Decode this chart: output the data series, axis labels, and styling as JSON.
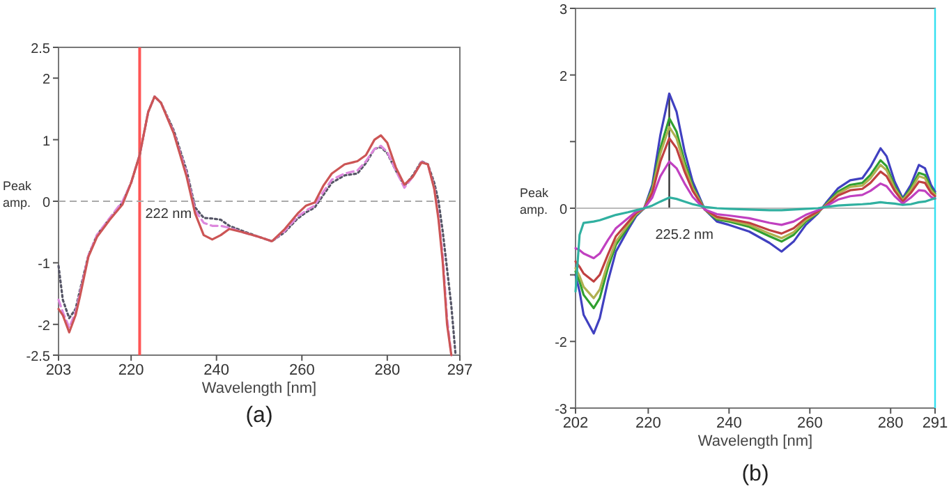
{
  "chart_data": [
    {
      "type": "line",
      "xlabel": "Wavelength [nm]",
      "ylabel": "Peak amp.",
      "annotations": [
        "(a)"
      ],
      "x": [
        203,
        204,
        205.5,
        207,
        208,
        210,
        212,
        215,
        218,
        220,
        222,
        224,
        225.5,
        227,
        230,
        233,
        235,
        237,
        239,
        241,
        243,
        246,
        250,
        253,
        256,
        259,
        261,
        263,
        265,
        267,
        270,
        273,
        275,
        277,
        278.5,
        280,
        282,
        284,
        286,
        288,
        289.5,
        291,
        292,
        293,
        294,
        295,
        296
      ],
      "xlim": [
        203,
        297
      ],
      "xticks": [
        203,
        220,
        240,
        260,
        280,
        297
      ],
      "ylim": [
        -2.5,
        2.5
      ],
      "yticks": [
        -2.5,
        -2,
        -1,
        0,
        1,
        2,
        2.5
      ],
      "ref_lines": [
        {
          "axis": "x",
          "value": 222,
          "label": "222 nm",
          "color": "#ff5555",
          "line_style": "solid"
        },
        {
          "axis": "y",
          "value": 0,
          "label": null,
          "color": "#aaaaaa",
          "line_style": "dashed"
        }
      ],
      "series": [
        {
          "color": "#555566",
          "line_style": "dotted",
          "values": [
            -1.05,
            -1.6,
            -1.9,
            -1.75,
            -1.45,
            -0.88,
            -0.55,
            -0.28,
            -0.02,
            0.3,
            0.75,
            1.45,
            1.7,
            1.6,
            1.15,
            0.5,
            -0.1,
            -0.27,
            -0.28,
            -0.3,
            -0.4,
            -0.48,
            -0.58,
            -0.65,
            -0.5,
            -0.28,
            -0.18,
            -0.1,
            0.1,
            0.3,
            0.42,
            0.45,
            0.62,
            0.85,
            0.88,
            0.78,
            0.5,
            0.25,
            0.42,
            0.65,
            0.6,
            0.3,
            0,
            -0.5,
            -1.1,
            -1.7,
            -2.5
          ]
        },
        {
          "color": "#dd88dd",
          "line_style": "dashed",
          "values": [
            -1.6,
            -1.8,
            -2.05,
            -1.8,
            -1.5,
            -0.88,
            -0.55,
            -0.27,
            0,
            0.3,
            0.75,
            1.45,
            1.7,
            1.6,
            1.12,
            0.45,
            -0.15,
            -0.35,
            -0.4,
            -0.4,
            -0.43,
            -0.5,
            -0.58,
            -0.65,
            -0.48,
            -0.25,
            -0.15,
            -0.07,
            0.15,
            0.35,
            0.45,
            0.5,
            0.65,
            0.85,
            0.9,
            0.8,
            0.5,
            0.22,
            0.4,
            0.64,
            0.6,
            0.22,
            -0.25,
            -0.9,
            -1.9,
            -2.5,
            null
          ]
        },
        {
          "color": "#cc5555",
          "line_style": "solid",
          "values": [
            -1.75,
            -1.85,
            -2.13,
            -1.85,
            -1.55,
            -0.9,
            -0.58,
            -0.3,
            -0.05,
            0.3,
            0.75,
            1.45,
            1.7,
            1.6,
            1.1,
            0.4,
            -0.2,
            -0.55,
            -0.62,
            -0.55,
            -0.45,
            -0.5,
            -0.58,
            -0.65,
            -0.45,
            -0.2,
            -0.07,
            -0.02,
            0.25,
            0.45,
            0.6,
            0.65,
            0.75,
            1.0,
            1.07,
            0.95,
            0.55,
            0.27,
            0.4,
            0.63,
            0.6,
            0.2,
            -0.3,
            -1.0,
            -2.0,
            -2.5,
            null
          ]
        }
      ]
    },
    {
      "type": "line",
      "xlabel": "Wavelength [nm]",
      "ylabel": "Peak amp.",
      "annotations": [
        "(b)"
      ],
      "x": [
        202,
        203,
        204,
        206.5,
        208,
        210,
        212,
        215,
        217,
        219,
        221,
        223,
        225.2,
        227,
        229,
        231,
        234,
        237,
        240,
        245,
        250,
        253,
        256,
        259,
        262,
        264,
        267,
        270,
        273,
        275,
        277.5,
        279,
        281,
        283,
        285,
        287,
        288.5,
        290,
        291
      ],
      "xlim": [
        202,
        291
      ],
      "xticks": [
        202,
        220,
        240,
        260,
        280,
        291
      ],
      "ylim": [
        -3,
        3
      ],
      "yticks": [
        -3,
        -2,
        {
          "value": -1,
          "label": null
        },
        0,
        {
          "value": 1,
          "label": null
        },
        2,
        3
      ],
      "ref_lines": [
        {
          "axis": "x",
          "value": 225.2,
          "label": "225.2 nm",
          "color": "#333333",
          "line_style": "solid"
        },
        {
          "axis": "y",
          "value": 0,
          "label": null,
          "color": "#bbbbbb",
          "line_style": "solid"
        },
        {
          "axis": "x",
          "value": 291,
          "label": null,
          "color": "#33e0f0",
          "line_style": "solid"
        }
      ],
      "series": [
        {
          "color": "#4040c0",
          "values": [
            -1.0,
            -1.25,
            -1.6,
            -1.88,
            -1.65,
            -1.1,
            -0.65,
            -0.32,
            -0.12,
            0,
            0.35,
            1.1,
            1.72,
            1.45,
            0.85,
            0.4,
            -0.02,
            -0.2,
            -0.25,
            -0.35,
            -0.52,
            -0.65,
            -0.5,
            -0.25,
            -0.08,
            0.08,
            0.3,
            0.42,
            0.45,
            0.62,
            0.9,
            0.78,
            0.4,
            0.15,
            0.35,
            0.65,
            0.6,
            0.35,
            0.25
          ]
        },
        {
          "color": "#30a030",
          "values": [
            -0.95,
            -1.1,
            -1.3,
            -1.5,
            -1.35,
            -0.9,
            -0.55,
            -0.28,
            -0.1,
            0,
            0.3,
            0.9,
            1.35,
            1.15,
            0.7,
            0.33,
            -0.02,
            -0.17,
            -0.2,
            -0.28,
            -0.42,
            -0.5,
            -0.4,
            -0.2,
            -0.07,
            0.06,
            0.25,
            0.35,
            0.38,
            0.5,
            0.72,
            0.63,
            0.33,
            0.13,
            0.3,
            0.53,
            0.5,
            0.3,
            0.22
          ]
        },
        {
          "color": "#b0b050",
          "values": [
            -0.9,
            -1.02,
            -1.18,
            -1.35,
            -1.22,
            -0.82,
            -0.5,
            -0.25,
            -0.09,
            0,
            0.27,
            0.82,
            1.22,
            1.05,
            0.63,
            0.3,
            -0.02,
            -0.15,
            -0.18,
            -0.25,
            -0.38,
            -0.45,
            -0.36,
            -0.18,
            -0.06,
            0.05,
            0.22,
            0.32,
            0.34,
            0.45,
            0.65,
            0.57,
            0.3,
            0.12,
            0.27,
            0.48,
            0.45,
            0.27,
            0.2
          ]
        },
        {
          "color": "#c04040",
          "values": [
            -0.8,
            -0.88,
            -0.98,
            -1.1,
            -1.0,
            -0.7,
            -0.42,
            -0.21,
            -0.07,
            0,
            0.23,
            0.7,
            1.05,
            0.9,
            0.55,
            0.26,
            -0.02,
            -0.13,
            -0.16,
            -0.22,
            -0.33,
            -0.38,
            -0.3,
            -0.15,
            -0.05,
            0.04,
            0.19,
            0.27,
            0.29,
            0.38,
            0.55,
            0.48,
            0.26,
            0.1,
            0.23,
            0.4,
            0.38,
            0.23,
            0.18
          ]
        },
        {
          "color": "#c040c0",
          "values": [
            -0.6,
            -0.63,
            -0.68,
            -0.75,
            -0.68,
            -0.48,
            -0.3,
            -0.15,
            -0.05,
            0,
            0.16,
            0.48,
            0.7,
            0.6,
            0.37,
            0.17,
            -0.02,
            -0.09,
            -0.11,
            -0.15,
            -0.22,
            -0.25,
            -0.2,
            -0.1,
            -0.03,
            0.03,
            0.13,
            0.18,
            0.2,
            0.26,
            0.37,
            0.33,
            0.18,
            0.07,
            0.16,
            0.27,
            0.26,
            0.17,
            0.14
          ]
        },
        {
          "color": "#30b0a0",
          "values": [
            -1.25,
            -0.4,
            -0.22,
            -0.2,
            -0.18,
            -0.14,
            -0.1,
            -0.06,
            -0.03,
            0,
            0.04,
            0.1,
            0.16,
            0.14,
            0.1,
            0.06,
            0.02,
            0,
            -0.01,
            -0.02,
            -0.03,
            -0.03,
            -0.02,
            -0.01,
            0,
            0.02,
            0.04,
            0.05,
            0.06,
            0.07,
            0.09,
            0.08,
            0.07,
            0.05,
            0.06,
            0.09,
            0.1,
            0.13,
            0.15
          ]
        }
      ]
    }
  ]
}
